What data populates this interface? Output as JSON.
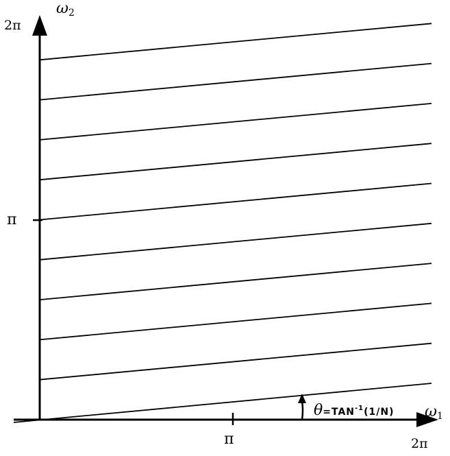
{
  "axes": {
    "horizontal": {
      "name": "ω",
      "subscript": "1",
      "max_label": "2π",
      "mid_label": "π"
    },
    "vertical": {
      "name": "ω",
      "subscript": "2",
      "max_label": "2π",
      "mid_label": "π"
    }
  },
  "angle_annotation": {
    "symbol": "θ",
    "text": "=TAN",
    "exponent": "-1",
    "argument": "(1/N)"
  },
  "line_count": 10
}
